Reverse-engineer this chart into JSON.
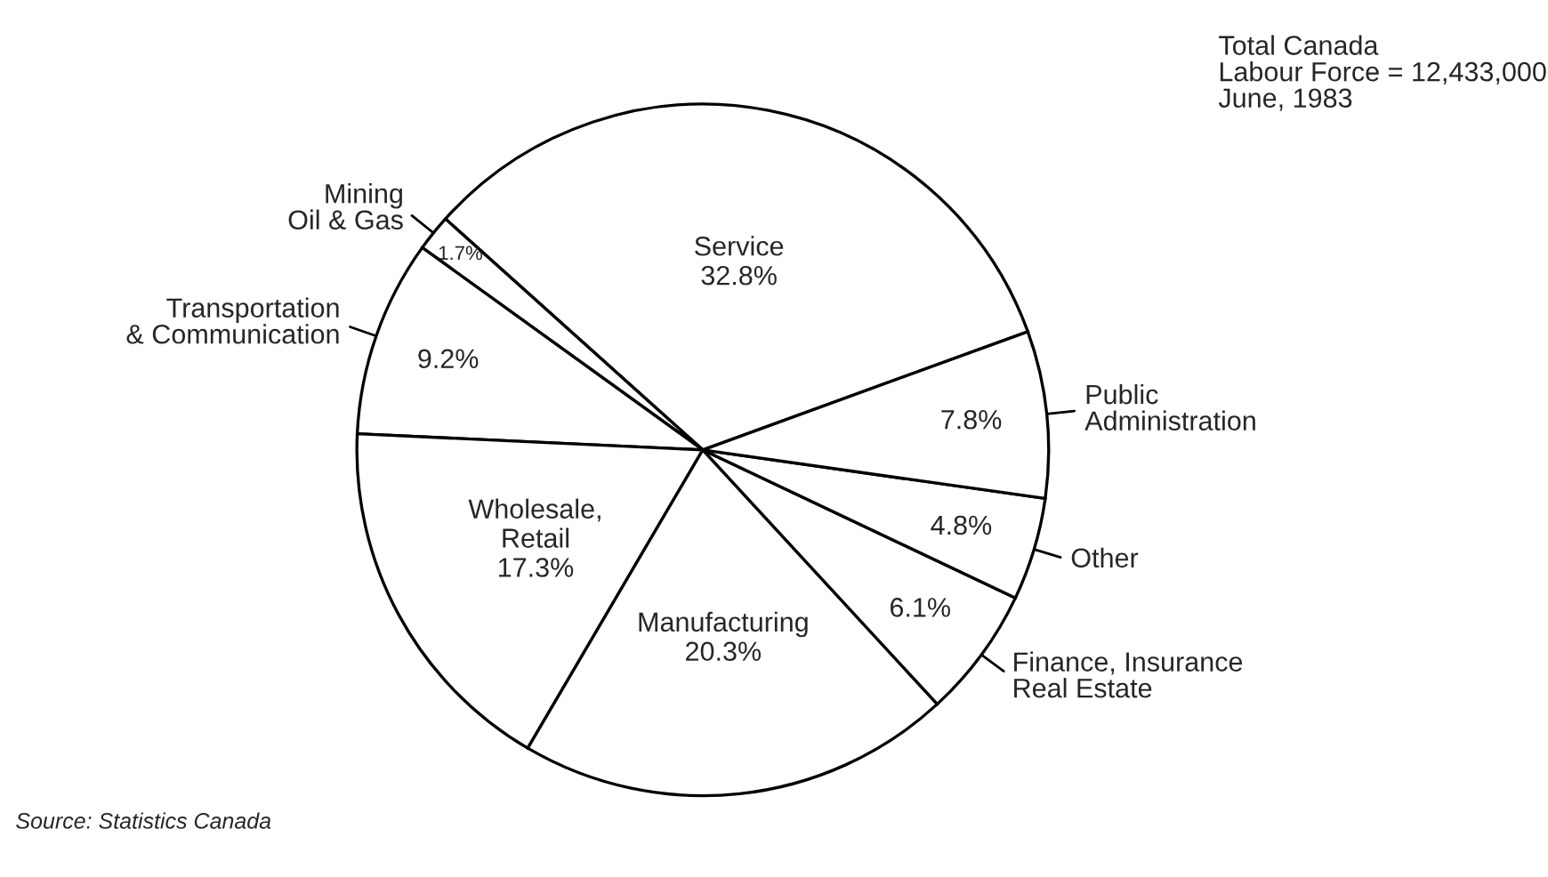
{
  "chart_data": {
    "type": "pie",
    "categories": [
      "Service",
      "Mining\nOil & Gas",
      "Transportation\n& Communication",
      "Wholesale,\nRetail",
      "Manufacturing",
      "Finance, Insurance\nReal Estate",
      "Other",
      "Public\nAdministration"
    ],
    "values": [
      32.8,
      1.7,
      9.2,
      17.3,
      20.3,
      6.1,
      4.8,
      7.8
    ],
    "value_labels": [
      "32.8%",
      "1.7%",
      "9.2%",
      "17.3%",
      "20.3%",
      "6.1%",
      "4.8%",
      "7.8%"
    ],
    "colors": [
      "#ffffff",
      "#ffffff",
      "#ffffff",
      "#ffffff",
      "#ffffff",
      "#ffffff",
      "#ffffff",
      "#ffffff"
    ],
    "data_labels": true,
    "legend": false,
    "annotations": [
      "Total Canada\nLabour Force = 12,433,000\nJune, 1983",
      "Source: Statistics Canada"
    ]
  }
}
